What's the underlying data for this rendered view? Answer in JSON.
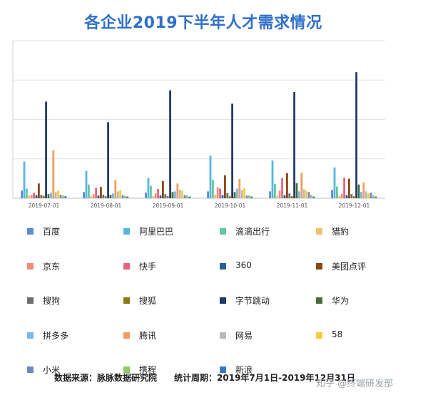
{
  "chart_data": {
    "type": "bar",
    "title": "各企业2019下半年人才需求情况",
    "categories": [
      "2019-07-01",
      "2019-08-01",
      "2019-09-01",
      "2019-10-01",
      "2019-11-01",
      "2019-12-01"
    ],
    "ylim": [
      0,
      4.6
    ],
    "grid": true,
    "legend_position": "bottom",
    "series": [
      {
        "name": "百度",
        "color": "#5b8bd6",
        "values": [
          0.22,
          0.18,
          0.16,
          0.2,
          0.2,
          0.24
        ]
      },
      {
        "name": "阿里巴巴",
        "color": "#5bb4de",
        "values": [
          1.07,
          0.8,
          0.59,
          1.24,
          1.1,
          0.9
        ]
      },
      {
        "name": "滴滴出行",
        "color": "#5cc9a0",
        "values": [
          0.28,
          0.4,
          0.36,
          0.54,
          0.42,
          0.34
        ]
      },
      {
        "name": "猎豹",
        "color": "#f5c06a",
        "values": [
          0.08,
          0.07,
          0.06,
          0.1,
          0.08,
          0.07
        ]
      },
      {
        "name": "京东",
        "color": "#ef8b7c",
        "values": [
          0.1,
          0.12,
          0.14,
          0.32,
          0.22,
          0.13
        ]
      },
      {
        "name": "快手",
        "color": "#e8637e",
        "values": [
          0.16,
          0.3,
          0.27,
          0.28,
          0.59,
          0.6
        ]
      },
      {
        "name": "360",
        "color": "#2a5d96",
        "values": [
          0.09,
          0.08,
          0.08,
          0.09,
          0.09,
          0.09
        ]
      },
      {
        "name": "美团点评",
        "color": "#8b4513",
        "values": [
          0.43,
          0.33,
          0.5,
          0.67,
          0.73,
          0.57
        ]
      },
      {
        "name": "搜狗",
        "color": "#6e6e6e",
        "values": [
          0.1,
          0.1,
          0.12,
          0.15,
          0.14,
          0.12
        ]
      },
      {
        "name": "搜狐",
        "color": "#8a7a14",
        "values": [
          0.07,
          0.06,
          0.06,
          0.06,
          0.06,
          0.06
        ]
      },
      {
        "name": "字节跳动",
        "color": "#1f3a6b",
        "values": [
          2.82,
          2.22,
          3.15,
          2.76,
          3.1,
          3.68
        ]
      },
      {
        "name": "华为",
        "color": "#4a6d3a",
        "values": [
          0.12,
          0.1,
          0.18,
          0.18,
          0.44,
          0.4
        ]
      },
      {
        "name": "拼多多",
        "color": "#7ab8e8",
        "values": [
          0.16,
          0.14,
          0.2,
          0.28,
          0.2,
          0.18
        ]
      },
      {
        "name": "腾讯",
        "color": "#ee9e62",
        "values": [
          1.4,
          0.54,
          0.43,
          0.56,
          0.74,
          0.46
        ]
      },
      {
        "name": "网易",
        "color": "#b8b8b8",
        "values": [
          0.18,
          0.2,
          0.25,
          0.24,
          0.26,
          0.2
        ]
      },
      {
        "name": "58",
        "color": "#f7cc3c",
        "values": [
          0.22,
          0.23,
          0.22,
          0.3,
          0.22,
          0.14
        ]
      },
      {
        "name": "小米",
        "color": "#6f86c2",
        "values": [
          0.1,
          0.09,
          0.09,
          0.08,
          0.18,
          0.16
        ]
      },
      {
        "name": "携程",
        "color": "#8fc968",
        "values": [
          0.08,
          0.07,
          0.08,
          0.08,
          0.1,
          0.08
        ]
      },
      {
        "name": "新浪",
        "color": "#3a79b8",
        "values": [
          0.06,
          0.05,
          0.05,
          0.05,
          0.05,
          0.05
        ]
      }
    ]
  },
  "footer": {
    "source": "数据来源：脉脉数据研究院",
    "period": "统计周期：2019年7月1日-2019年12月31日"
  },
  "watermark": "知乎 @终端研发部"
}
